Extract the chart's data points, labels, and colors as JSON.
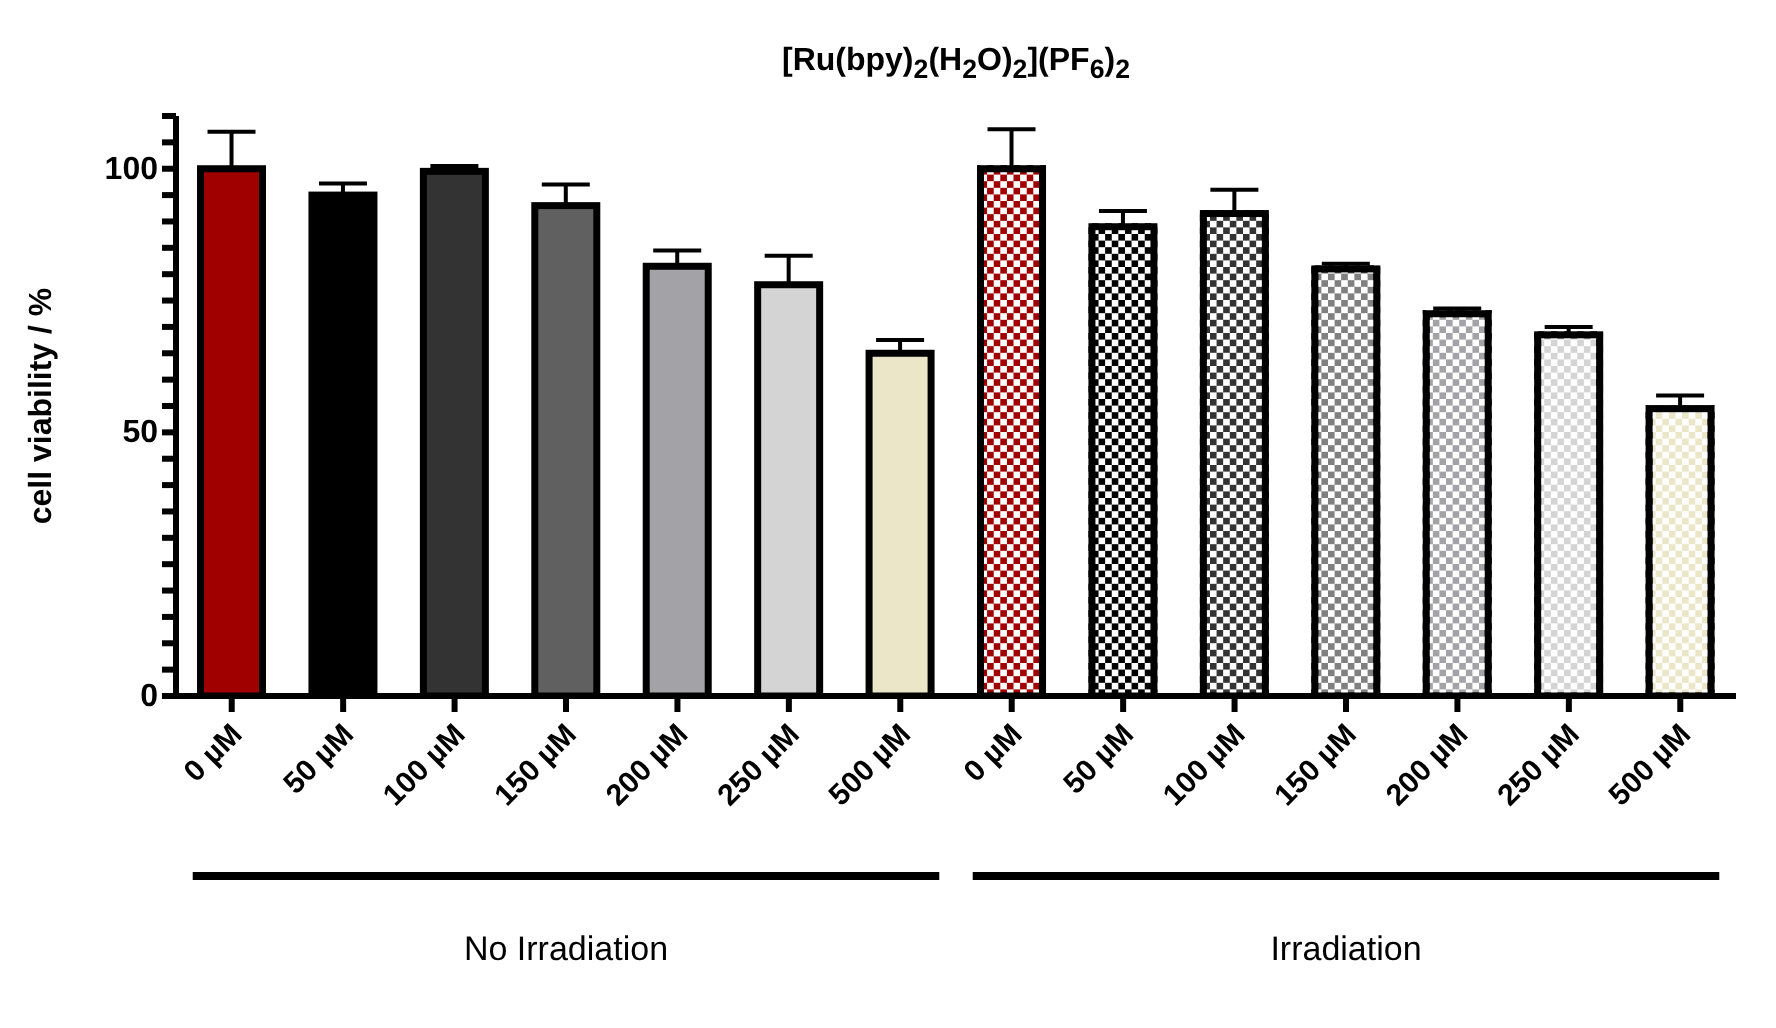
{
  "chart_data": {
    "type": "bar",
    "title": "[Ru(bpy)$_{2}$(H$_{2}$O)$_{2}$](PF$_{6}$)$_{2}$",
    "ylabel": "cell viability / %",
    "categories": [
      "0 µM",
      "50 µM",
      "100 µM",
      "150 µM",
      "200 µM",
      "250 µM",
      "500 µM",
      "0 µM",
      "50 µM",
      "100 µM",
      "150 µM",
      "200 µM",
      "250 µM",
      "500 µM"
    ],
    "values": [
      100,
      95,
      99.5,
      93,
      81.5,
      78,
      65,
      100,
      89,
      91.5,
      81,
      72.5,
      68.5,
      54.5
    ],
    "colors": [
      "#a00000",
      "#000000",
      "#333333",
      "#606060",
      "#a3a2a6",
      "#d4d4d4",
      "#ece6c8",
      "#a00000",
      "#000000",
      "#333333",
      "#808080",
      "#a3a2a6",
      "#d4d4d4",
      "#ece6c8"
    ],
    "errors": [
      [
        100,
        107
      ],
      [
        95,
        97.2
      ],
      [
        99.5,
        100.5
      ],
      [
        93,
        97
      ],
      [
        81.5,
        84.5
      ],
      [
        78,
        83.5
      ],
      [
        65,
        67.5
      ],
      [
        100,
        107.5
      ],
      [
        89,
        92
      ],
      [
        91.5,
        96
      ],
      [
        81,
        82
      ],
      [
        72.5,
        73.5
      ],
      [
        68.5,
        70
      ],
      [
        54.5,
        57
      ]
    ],
    "annotations": [
      "No Irradiation",
      "Irradiation"
    ],
    "ylim": [
      0,
      110
    ],
    "yticks": [
      {
        "value": 0,
        "label": "0"
      },
      {
        "value": 5,
        "label": null
      },
      {
        "value": 10,
        "label": null
      },
      {
        "value": 15,
        "label": null
      },
      {
        "value": 20,
        "label": null
      },
      {
        "value": 25,
        "label": null
      },
      {
        "value": 30,
        "label": null
      },
      {
        "value": 35,
        "label": null
      },
      {
        "value": 40,
        "label": null
      },
      {
        "value": 45,
        "label": null
      },
      {
        "value": 50,
        "label": "50"
      },
      {
        "value": 55,
        "label": null
      },
      {
        "value": 60,
        "label": null
      },
      {
        "value": 65,
        "label": null
      },
      {
        "value": 70,
        "label": null
      },
      {
        "value": 75,
        "label": null
      },
      {
        "value": 80,
        "label": null
      },
      {
        "value": 85,
        "label": null
      },
      {
        "value": 90,
        "label": null
      },
      {
        "value": 95,
        "label": null
      },
      {
        "value": 100,
        "label": "100"
      },
      {
        "value": 105,
        "label": null
      },
      {
        "value": 110,
        "label": null
      }
    ],
    "grid": false,
    "legend": false
  }
}
